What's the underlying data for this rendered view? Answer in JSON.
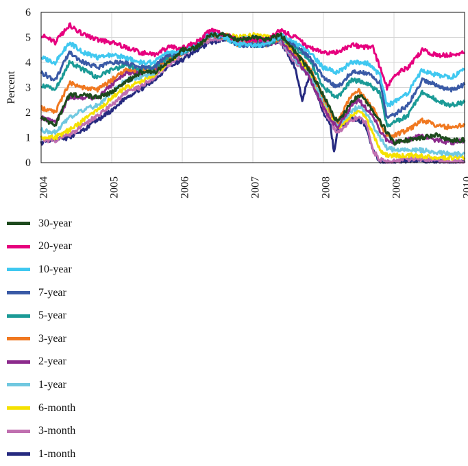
{
  "chart_data": {
    "type": "line",
    "title": "",
    "xlabel": "",
    "ylabel": "Percent",
    "xlim": [
      2004,
      2010
    ],
    "ylim": [
      0,
      6
    ],
    "grid": true,
    "legend_position": "bottom",
    "x_ticks": [
      "2004",
      "2005",
      "2006",
      "2007",
      "2008",
      "2009",
      "2010"
    ],
    "y_ticks": [
      "0",
      "1",
      "2",
      "3",
      "4",
      "5",
      "6"
    ],
    "series": [
      {
        "name": "30-year",
        "color": "#1d4a1d",
        "x": [
          2004.0,
          2004.2,
          2004.4,
          2004.6,
          2004.8,
          2005.0,
          2005.2,
          2005.4,
          2005.6,
          2005.8,
          2006.0,
          2006.2,
          2006.4,
          2006.6,
          2006.8,
          2007.0,
          2007.2,
          2007.4,
          2007.6,
          2007.8,
          2008.0,
          2008.1,
          2008.2,
          2008.4,
          2008.5,
          2008.6,
          2008.7,
          2008.8,
          2008.9,
          2009.0,
          2009.2,
          2009.4,
          2009.6,
          2009.8,
          2010.0
        ],
        "y": [
          1.8,
          1.5,
          2.7,
          2.7,
          2.6,
          2.8,
          3.2,
          3.6,
          3.6,
          4.0,
          4.5,
          4.6,
          5.1,
          5.1,
          4.9,
          5.0,
          4.9,
          5.1,
          4.4,
          3.7,
          2.7,
          2.1,
          1.6,
          2.4,
          2.7,
          2.5,
          2.0,
          1.7,
          1.2,
          0.8,
          0.9,
          1.0,
          1.1,
          0.9,
          0.9
        ]
      },
      {
        "name": "20-year",
        "color": "#e6007e",
        "x": [
          2004.0,
          2004.2,
          2004.4,
          2004.6,
          2004.8,
          2005.0,
          2005.2,
          2005.4,
          2005.6,
          2005.8,
          2006.0,
          2006.2,
          2006.4,
          2006.6,
          2006.8,
          2007.0,
          2007.2,
          2007.4,
          2007.6,
          2007.8,
          2008.0,
          2008.2,
          2008.4,
          2008.6,
          2008.7,
          2008.8,
          2008.9,
          2009.0,
          2009.2,
          2009.4,
          2009.6,
          2009.8,
          2010.0
        ],
        "y": [
          5.1,
          4.8,
          5.5,
          5.1,
          4.9,
          4.8,
          4.6,
          4.4,
          4.3,
          4.6,
          4.6,
          4.8,
          5.3,
          5.1,
          4.9,
          4.9,
          4.9,
          5.3,
          5.0,
          4.6,
          4.4,
          4.4,
          4.7,
          4.6,
          4.6,
          3.8,
          3.0,
          3.5,
          3.8,
          4.5,
          4.3,
          4.3,
          4.4
        ]
      },
      {
        "name": "10-year",
        "color": "#40c8f0",
        "x": [
          2004.0,
          2004.2,
          2004.4,
          2004.6,
          2004.8,
          2005.0,
          2005.2,
          2005.4,
          2005.6,
          2005.8,
          2006.0,
          2006.2,
          2006.4,
          2006.6,
          2006.8,
          2007.0,
          2007.2,
          2007.4,
          2007.6,
          2007.8,
          2008.0,
          2008.2,
          2008.4,
          2008.6,
          2008.7,
          2008.8,
          2008.9,
          2009.0,
          2009.2,
          2009.4,
          2009.6,
          2009.8,
          2010.0
        ],
        "y": [
          4.2,
          4.0,
          4.8,
          4.4,
          4.2,
          4.3,
          4.2,
          4.0,
          4.0,
          4.4,
          4.4,
          4.7,
          5.2,
          5.0,
          4.7,
          4.7,
          4.7,
          5.1,
          4.8,
          4.4,
          3.8,
          3.6,
          4.0,
          4.0,
          3.8,
          3.5,
          2.3,
          2.4,
          2.8,
          3.7,
          3.5,
          3.4,
          3.7
        ]
      },
      {
        "name": "7-year",
        "color": "#3a5aa6",
        "x": [
          2004.0,
          2004.2,
          2004.4,
          2004.6,
          2004.8,
          2005.0,
          2005.2,
          2005.4,
          2005.6,
          2005.8,
          2006.0,
          2006.2,
          2006.4,
          2006.6,
          2006.8,
          2007.0,
          2007.2,
          2007.4,
          2007.6,
          2007.8,
          2008.0,
          2008.2,
          2008.4,
          2008.6,
          2008.7,
          2008.8,
          2008.9,
          2009.0,
          2009.2,
          2009.4,
          2009.6,
          2009.8,
          2010.0
        ],
        "y": [
          3.6,
          3.3,
          4.4,
          4.0,
          3.8,
          4.0,
          4.0,
          3.8,
          3.8,
          4.3,
          4.4,
          4.6,
          5.2,
          5.0,
          4.7,
          4.7,
          4.7,
          5.1,
          4.7,
          4.2,
          3.4,
          3.0,
          3.6,
          3.6,
          3.4,
          3.2,
          1.8,
          1.9,
          2.3,
          3.3,
          3.1,
          2.9,
          3.1
        ]
      },
      {
        "name": "5-year",
        "color": "#1a9a96",
        "x": [
          2004.0,
          2004.2,
          2004.4,
          2004.6,
          2004.8,
          2005.0,
          2005.2,
          2005.4,
          2005.6,
          2005.8,
          2006.0,
          2006.2,
          2006.4,
          2006.6,
          2006.8,
          2007.0,
          2007.2,
          2007.4,
          2007.6,
          2007.8,
          2008.0,
          2008.2,
          2008.4,
          2008.6,
          2008.7,
          2008.8,
          2008.9,
          2009.0,
          2009.2,
          2009.4,
          2009.6,
          2009.8,
          2010.0
        ],
        "y": [
          3.1,
          2.9,
          4.0,
          3.7,
          3.4,
          3.7,
          3.9,
          3.7,
          3.8,
          4.2,
          4.4,
          4.6,
          5.1,
          5.0,
          4.7,
          4.7,
          4.7,
          5.0,
          4.6,
          4.1,
          3.0,
          2.6,
          3.3,
          3.2,
          3.0,
          2.8,
          1.5,
          1.6,
          1.9,
          2.8,
          2.5,
          2.3,
          2.4
        ]
      },
      {
        "name": "3-year",
        "color": "#f07820",
        "x": [
          2004.0,
          2004.2,
          2004.4,
          2004.6,
          2004.8,
          2005.0,
          2005.2,
          2005.4,
          2005.6,
          2005.8,
          2006.0,
          2006.2,
          2006.4,
          2006.6,
          2006.8,
          2007.0,
          2007.2,
          2007.4,
          2007.6,
          2007.8,
          2008.0,
          2008.1,
          2008.2,
          2008.4,
          2008.5,
          2008.6,
          2008.7,
          2008.8,
          2008.9,
          2009.0,
          2009.2,
          2009.4,
          2009.6,
          2009.8,
          2010.0
        ],
        "y": [
          2.2,
          2.0,
          3.2,
          3.0,
          2.9,
          3.3,
          3.7,
          3.7,
          3.7,
          4.2,
          4.4,
          4.7,
          5.1,
          5.0,
          4.7,
          4.8,
          4.7,
          5.0,
          4.4,
          3.8,
          2.6,
          2.0,
          1.6,
          2.7,
          2.9,
          2.5,
          2.2,
          1.6,
          1.1,
          1.1,
          1.3,
          1.7,
          1.5,
          1.4,
          1.5
        ]
      },
      {
        "name": "2-year",
        "color": "#8c2a8c",
        "x": [
          2004.0,
          2004.2,
          2004.4,
          2004.6,
          2004.8,
          2005.0,
          2005.2,
          2005.4,
          2005.6,
          2005.8,
          2006.0,
          2006.2,
          2006.4,
          2006.6,
          2006.8,
          2007.0,
          2007.2,
          2007.4,
          2007.6,
          2007.8,
          2008.0,
          2008.1,
          2008.2,
          2008.4,
          2008.5,
          2008.6,
          2008.7,
          2008.8,
          2008.9,
          2009.0,
          2009.2,
          2009.4,
          2009.6,
          2009.8,
          2010.0
        ],
        "y": [
          1.8,
          1.6,
          2.6,
          2.6,
          2.6,
          3.1,
          3.6,
          3.6,
          3.7,
          4.2,
          4.4,
          4.7,
          5.1,
          5.0,
          4.7,
          4.8,
          4.7,
          4.9,
          4.2,
          3.4,
          2.2,
          1.7,
          1.4,
          2.3,
          2.5,
          2.2,
          1.9,
          1.3,
          0.9,
          0.8,
          0.9,
          1.1,
          0.9,
          0.8,
          0.9
        ]
      },
      {
        "name": "1-year",
        "color": "#70c8e0",
        "x": [
          2004.0,
          2004.2,
          2004.4,
          2004.6,
          2004.8,
          2005.0,
          2005.2,
          2005.4,
          2005.6,
          2005.8,
          2006.0,
          2006.2,
          2006.4,
          2006.6,
          2006.8,
          2007.0,
          2007.2,
          2007.4,
          2007.6,
          2007.8,
          2008.0,
          2008.1,
          2008.2,
          2008.4,
          2008.5,
          2008.6,
          2008.7,
          2008.8,
          2008.9,
          2009.0,
          2009.2,
          2009.4,
          2009.6,
          2009.8,
          2010.0
        ],
        "y": [
          1.3,
          1.2,
          1.8,
          2.1,
          2.3,
          2.8,
          3.3,
          3.4,
          3.6,
          4.1,
          4.4,
          4.7,
          5.1,
          5.0,
          4.9,
          5.0,
          4.9,
          4.9,
          4.1,
          3.5,
          2.5,
          2.0,
          1.5,
          2.0,
          2.3,
          2.0,
          1.5,
          1.0,
          0.6,
          0.5,
          0.5,
          0.5,
          0.4,
          0.35,
          0.35
        ]
      },
      {
        "name": "6-month",
        "color": "#f5e100",
        "x": [
          2004.0,
          2004.2,
          2004.4,
          2004.6,
          2004.8,
          2005.0,
          2005.2,
          2005.4,
          2005.6,
          2005.8,
          2006.0,
          2006.2,
          2006.4,
          2006.6,
          2006.8,
          2007.0,
          2007.2,
          2007.4,
          2007.6,
          2007.8,
          2008.0,
          2008.1,
          2008.2,
          2008.4,
          2008.5,
          2008.6,
          2008.7,
          2008.8,
          2008.9,
          2009.0,
          2009.2,
          2009.4,
          2009.6,
          2009.8,
          2010.0
        ],
        "y": [
          1.0,
          1.0,
          1.3,
          1.7,
          2.1,
          2.6,
          3.0,
          3.2,
          3.5,
          4.0,
          4.4,
          4.7,
          5.1,
          5.1,
          5.0,
          5.1,
          5.0,
          5.0,
          4.2,
          3.6,
          2.4,
          1.9,
          1.4,
          1.9,
          2.1,
          1.8,
          1.2,
          0.5,
          0.3,
          0.3,
          0.3,
          0.25,
          0.2,
          0.2,
          0.2
        ]
      },
      {
        "name": "3-month",
        "color": "#c070b0",
        "x": [
          2004.0,
          2004.2,
          2004.4,
          2004.6,
          2004.8,
          2005.0,
          2005.2,
          2005.4,
          2005.6,
          2005.8,
          2006.0,
          2006.2,
          2006.4,
          2006.6,
          2006.8,
          2007.0,
          2007.2,
          2007.4,
          2007.6,
          2007.8,
          2008.0,
          2008.1,
          2008.2,
          2008.4,
          2008.5,
          2008.6,
          2008.7,
          2008.8,
          2008.9,
          2009.0,
          2009.2,
          2009.4,
          2009.6,
          2009.8,
          2010.0
        ],
        "y": [
          0.9,
          0.9,
          1.1,
          1.5,
          1.9,
          2.3,
          2.8,
          3.0,
          3.4,
          3.9,
          4.3,
          4.6,
          4.9,
          5.0,
          4.9,
          5.0,
          4.9,
          4.8,
          4.0,
          3.5,
          2.2,
          1.6,
          1.2,
          1.7,
          1.8,
          1.6,
          0.5,
          0.1,
          0.05,
          0.05,
          0.15,
          0.15,
          0.1,
          0.05,
          0.05
        ]
      },
      {
        "name": "1-month",
        "color": "#262a80",
        "x": [
          2004.0,
          2004.2,
          2004.4,
          2004.6,
          2004.8,
          2005.0,
          2005.2,
          2005.4,
          2005.6,
          2005.8,
          2006.0,
          2006.2,
          2006.4,
          2006.6,
          2006.8,
          2007.0,
          2007.2,
          2007.4,
          2007.6,
          2007.7,
          2007.8,
          2008.0,
          2008.1,
          2008.15,
          2008.2,
          2008.4,
          2008.5,
          2008.6,
          2008.7,
          2008.8,
          2008.9,
          2009.0,
          2009.2,
          2009.4,
          2009.6,
          2009.8,
          2010.0
        ],
        "y": [
          0.8,
          0.9,
          1.0,
          1.3,
          1.7,
          2.1,
          2.6,
          2.9,
          3.3,
          3.8,
          4.1,
          4.5,
          4.8,
          4.9,
          4.9,
          4.9,
          4.9,
          4.8,
          3.8,
          2.5,
          3.5,
          2.0,
          1.5,
          0.4,
          1.3,
          1.8,
          1.7,
          1.5,
          0.5,
          0.05,
          0.0,
          0.0,
          0.1,
          0.1,
          0.05,
          0.0,
          0.0
        ]
      }
    ]
  }
}
